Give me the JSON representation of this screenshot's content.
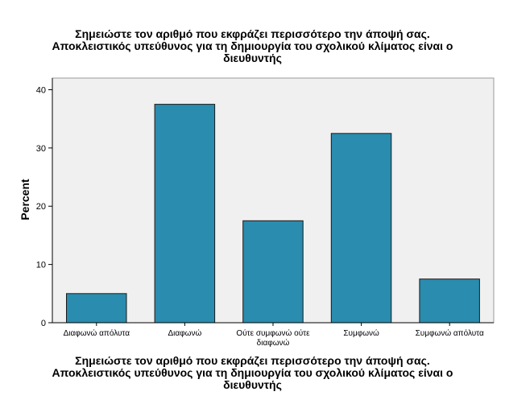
{
  "chart_data": {
    "type": "bar",
    "title_lines": [
      "Σημειώστε τον αριθμό που εκφράζει περισσότερο την άποψή σας.",
      "Αποκλειστικός υπεύθυνος για τη δημιουργία του σχολικού κλίματος είναι ο",
      "διευθυντής"
    ],
    "xlabel_lines": [
      "Σημειώστε τον αριθμό που εκφράζει περισσότερο την άποψή σας.",
      "Αποκλειστικός υπεύθυνος για τη δημιουργία του σχολικού κλίματος είναι ο",
      "διευθυντής"
    ],
    "ylabel": "Percent",
    "categories": [
      [
        "Διαφωνώ απόλυτα"
      ],
      [
        "Διαφωνώ"
      ],
      [
        "Ούτε συμφωνώ ούτε",
        "διαφωνώ"
      ],
      [
        "Συμφωνώ"
      ],
      [
        "Συμφωνώ απόλυτα"
      ]
    ],
    "values": [
      5.0,
      37.5,
      17.5,
      32.5,
      7.5
    ],
    "ylim": [
      0,
      42
    ],
    "yticks": [
      0,
      10,
      20,
      30,
      40
    ],
    "grid": false,
    "colors": {
      "bar_fill": "#2a8cae",
      "bar_stroke": "#1a1a1a",
      "plot_background": "#f0f0f0",
      "axis": "#000000"
    }
  }
}
